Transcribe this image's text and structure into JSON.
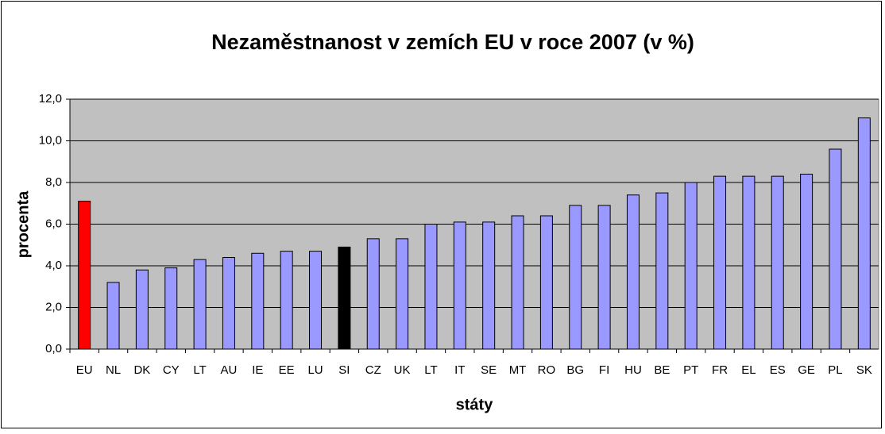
{
  "chart_data": {
    "type": "bar",
    "title": "Nezaměstnanost v zemích EU v roce 2007 (v %)",
    "x_label": "státy",
    "y_label": "procenta",
    "categories": [
      "EU",
      "NL",
      "DK",
      "CY",
      "LT",
      "AU",
      "IE",
      "EE",
      "LU",
      "SI",
      "CZ",
      "UK",
      "LT",
      "IT",
      "SE",
      "MT",
      "RO",
      "BG",
      "FI",
      "HU",
      "BE",
      "PT",
      "FR",
      "EL",
      "ES",
      "GE",
      "PL",
      "SK"
    ],
    "values": [
      7.1,
      3.2,
      3.8,
      3.9,
      4.3,
      4.4,
      4.6,
      4.7,
      4.7,
      4.9,
      5.3,
      5.3,
      6.0,
      6.1,
      6.1,
      6.4,
      6.4,
      6.9,
      6.9,
      7.4,
      7.5,
      8.0,
      8.3,
      8.3,
      8.3,
      8.4,
      9.6,
      11.1
    ],
    "colors": [
      "#ff0000",
      "#9999ff",
      "#9999ff",
      "#9999ff",
      "#9999ff",
      "#9999ff",
      "#9999ff",
      "#9999ff",
      "#9999ff",
      "#000000",
      "#9999ff",
      "#9999ff",
      "#9999ff",
      "#9999ff",
      "#9999ff",
      "#9999ff",
      "#9999ff",
      "#9999ff",
      "#9999ff",
      "#9999ff",
      "#9999ff",
      "#9999ff",
      "#9999ff",
      "#9999ff",
      "#9999ff",
      "#9999ff",
      "#9999ff",
      "#9999ff"
    ],
    "ylim": [
      0,
      12
    ],
    "yticks": [
      {
        "value": 0,
        "label": "0,0"
      },
      {
        "value": 2,
        "label": "2,0"
      },
      {
        "value": 4,
        "label": "4,0"
      },
      {
        "value": 6,
        "label": "6,0"
      },
      {
        "value": 8,
        "label": "8,0"
      },
      {
        "value": 10,
        "label": "10,0"
      },
      {
        "value": 12,
        "label": "12,0"
      }
    ],
    "grid": true
  }
}
